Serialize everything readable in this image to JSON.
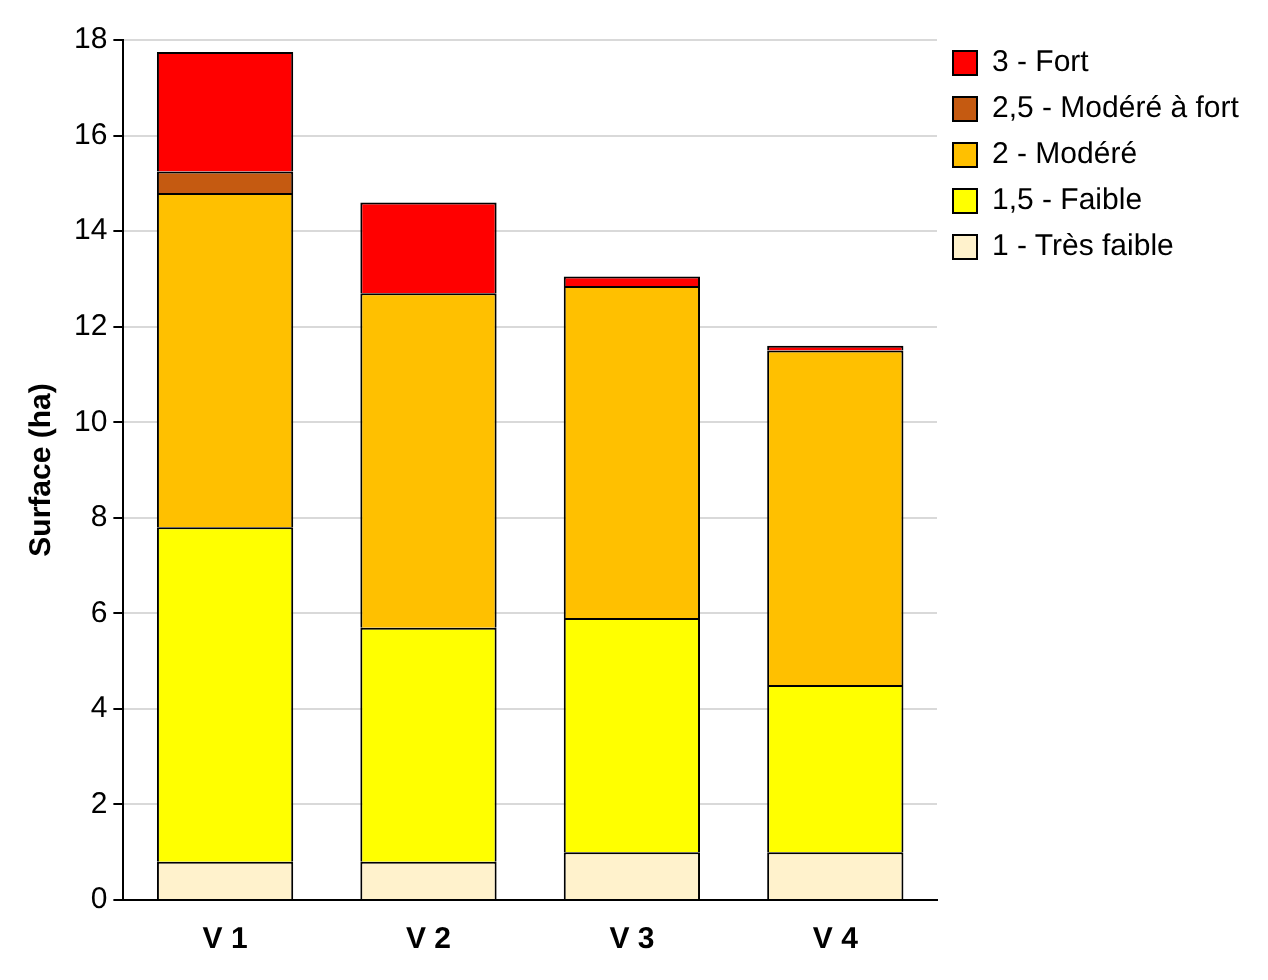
{
  "chart_data": {
    "type": "bar",
    "stacked": true,
    "ylabel": "Surface (ha)",
    "categories": [
      "V 1",
      "V 2",
      "V 3",
      "V 4"
    ],
    "series": [
      {
        "name": "1 - Très faible",
        "color": "#fff2cc",
        "values": [
          0.8,
          0.8,
          1.0,
          1.0
        ]
      },
      {
        "name": "1,5 - Faible",
        "color": "#ffff00",
        "values": [
          7.0,
          4.9,
          4.9,
          3.5
        ]
      },
      {
        "name": "2 - Modéré",
        "color": "#ffc000",
        "values": [
          7.0,
          7.0,
          6.95,
          7.0
        ]
      },
      {
        "name": "2,5 - Modéré à fort",
        "color": "#c55a11",
        "values": [
          0.45,
          0,
          0,
          0
        ]
      },
      {
        "name": "3 - Fort",
        "color": "#ff0000",
        "values": [
          2.5,
          1.9,
          0.2,
          0.1
        ]
      }
    ],
    "ylim": [
      0,
      18
    ],
    "yticks": [
      0,
      2,
      4,
      6,
      8,
      10,
      12,
      14,
      16,
      18
    ],
    "grid": "y",
    "legend": "top right"
  }
}
